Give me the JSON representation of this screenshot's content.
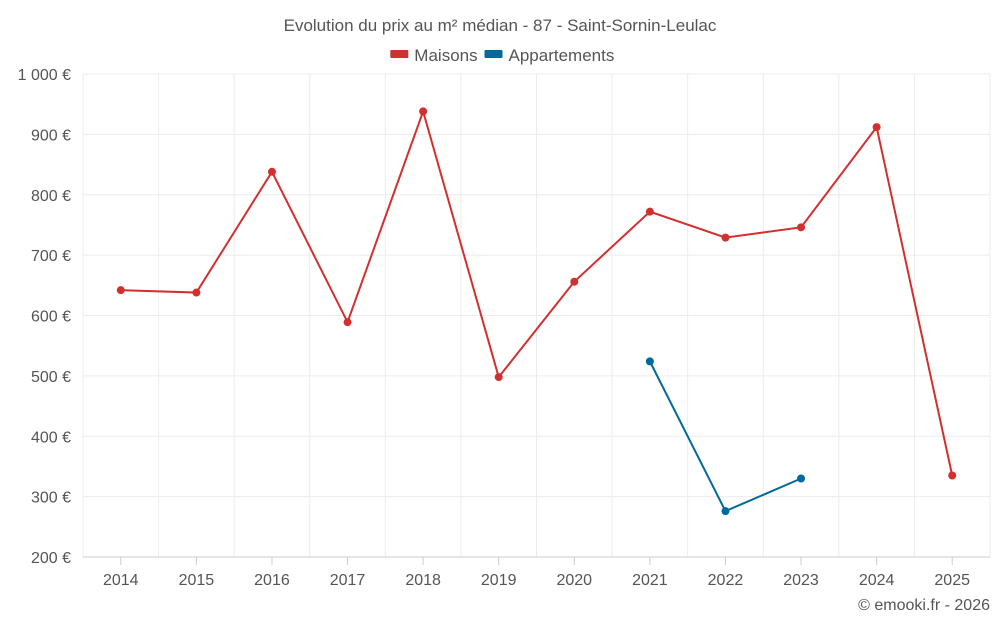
{
  "chart_data": {
    "type": "line",
    "title": "Evolution du prix au m² médian - 87 - Saint-Sornin-Leulac",
    "categories": [
      "2014",
      "2015",
      "2016",
      "2017",
      "2018",
      "2019",
      "2020",
      "2021",
      "2022",
      "2023",
      "2024",
      "2025"
    ],
    "series": [
      {
        "name": "Maisons",
        "color": "#d32f2f",
        "values": [
          642,
          638,
          838,
          589,
          938,
          498,
          656,
          772,
          729,
          746,
          912,
          335
        ]
      },
      {
        "name": "Appartements",
        "color": "#01699b",
        "values": [
          null,
          null,
          null,
          null,
          null,
          null,
          null,
          524,
          276,
          330,
          null,
          null
        ]
      }
    ],
    "ylim": [
      200,
      1000
    ],
    "yticks": [
      200,
      300,
      400,
      500,
      600,
      700,
      800,
      900,
      1000
    ],
    "ytick_labels": [
      "200 €",
      "300 €",
      "400 €",
      "500 €",
      "600 €",
      "700 €",
      "800 €",
      "900 €",
      "1 000 €"
    ],
    "xlabel": "",
    "ylabel": "",
    "legend_position": "top-center",
    "grid": true
  },
  "credit": "© emooki.fr - 2026"
}
